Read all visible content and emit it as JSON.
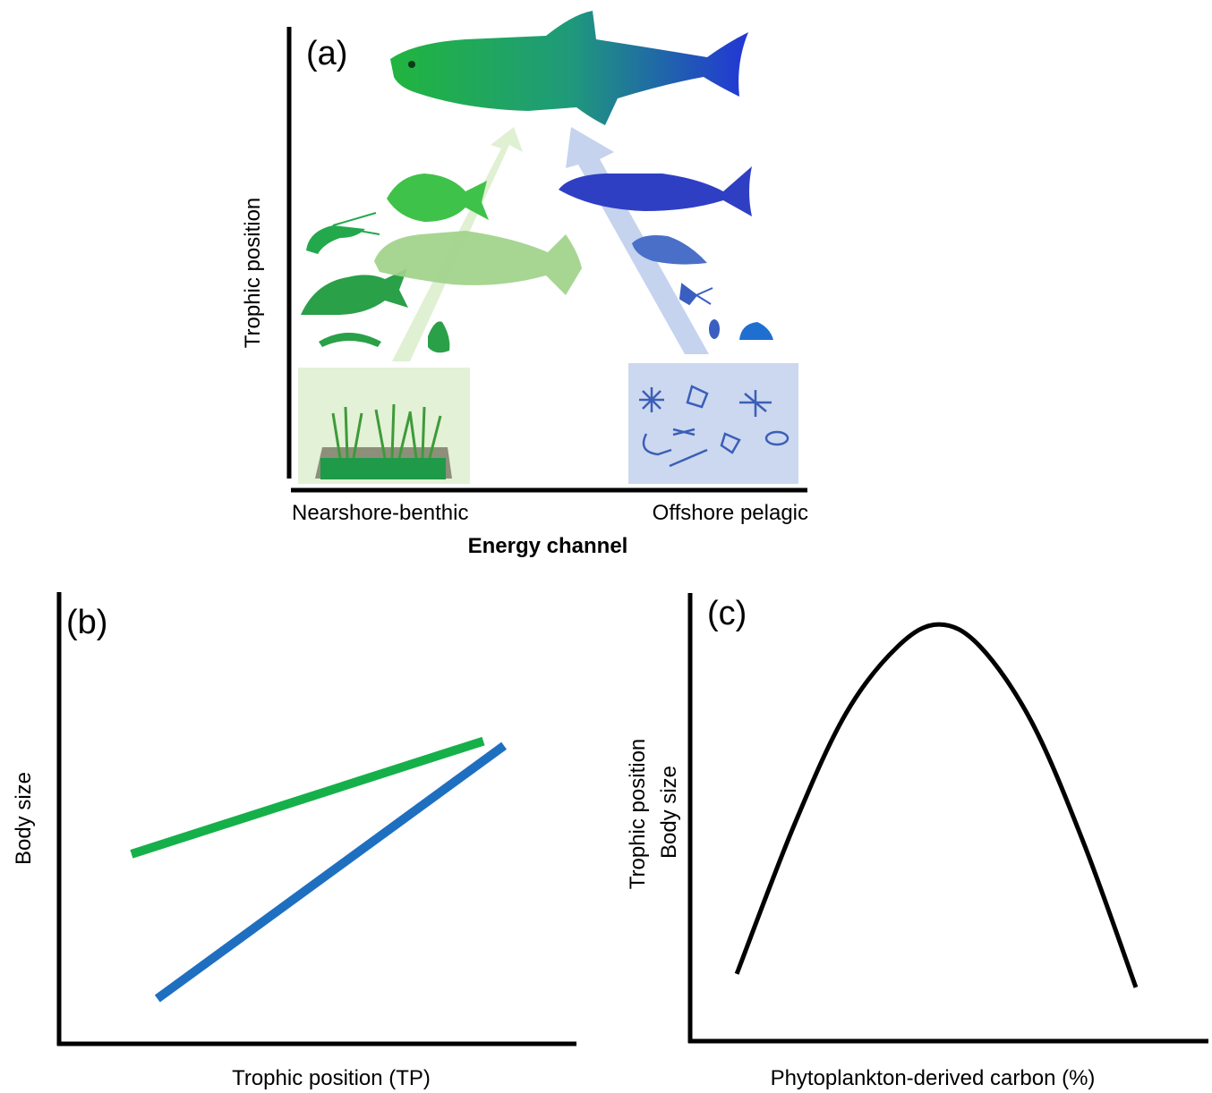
{
  "panel_a": {
    "label": "(a)",
    "y_axis_label": "Trophic position",
    "x_left_label": "Nearshore-benthic",
    "x_right_label": "Offshore pelagic",
    "x_axis_title": "Energy channel",
    "colors": {
      "nearshore": "#1fae48",
      "offshore": "#2f3fc4",
      "nearshore_box": "#e3f1d6",
      "offshore_box": "#ccd8ef"
    }
  },
  "panel_b": {
    "label": "(b)",
    "y_axis_label": "Body size",
    "x_axis_label": "Trophic position (TP)",
    "colors": {
      "nearshore": "#16b04a",
      "offshore": "#1f6fc1"
    }
  },
  "panel_c": {
    "label": "(c)",
    "y_axis_label_line1": "Trophic position",
    "y_axis_label_line2": "Body size",
    "x_axis_label": "Phytoplankton-derived carbon (%)"
  },
  "chart_data": [
    {
      "type": "line",
      "panel": "(b)",
      "xlabel": "Trophic position (TP)",
      "ylabel": "Body size",
      "xlim": [
        0,
        1
      ],
      "ylim": [
        0,
        1
      ],
      "series": [
        {
          "color": "#16b04a",
          "x": [
            0.14,
            0.82
          ],
          "y": [
            0.42,
            0.67
          ]
        },
        {
          "color": "#1f6fc1",
          "x": [
            0.19,
            0.86
          ],
          "y": [
            0.1,
            0.66
          ]
        }
      ]
    },
    {
      "type": "line",
      "panel": "(c)",
      "xlabel": "Phytoplankton-derived carbon (%)",
      "ylabel": "Trophic position / Body size",
      "xlim": [
        0,
        1
      ],
      "ylim": [
        0,
        1
      ],
      "series": [
        {
          "color": "#000000",
          "x": [
            0.09,
            0.2,
            0.3,
            0.4,
            0.48,
            0.56,
            0.66,
            0.76,
            0.86
          ],
          "y": [
            0.15,
            0.48,
            0.73,
            0.88,
            0.93,
            0.88,
            0.71,
            0.44,
            0.12
          ]
        }
      ]
    }
  ]
}
